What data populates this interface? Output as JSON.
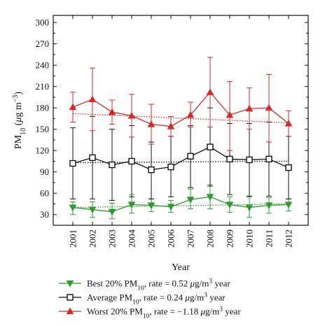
{
  "chart_data": {
    "type": "line",
    "xlabel": "Year",
    "ylabel_main": "PM",
    "ylabel_sub": "10",
    "ylabel_unit_prefix": " (",
    "ylabel_unit_mu": "μ",
    "ylabel_unit_mid": "g m",
    "ylabel_unit_sup": "−3",
    "ylabel_unit_end": ")",
    "categories": [
      "2001",
      "2002",
      "2003",
      "2004",
      "2005",
      "2006",
      "2007",
      "2008",
      "2009",
      "2010",
      "2011",
      "2012"
    ],
    "yticks": [
      30,
      60,
      90,
      120,
      150,
      180,
      210,
      240,
      270,
      300
    ],
    "ylim": [
      15,
      310
    ],
    "series": [
      {
        "key": "best",
        "color": "#2e9b2e",
        "marker": "triangle-down",
        "values": [
          40,
          37,
          34,
          44,
          43,
          41,
          51,
          55,
          44,
          40,
          43,
          44
        ],
        "err_hi": [
          48,
          48,
          46,
          58,
          52,
          50,
          66,
          72,
          55,
          55,
          54,
          52
        ],
        "err_lo": [
          30,
          26,
          24,
          32,
          34,
          33,
          38,
          38,
          33,
          26,
          32,
          35
        ],
        "trend": [
          40,
          45
        ]
      },
      {
        "key": "average",
        "color": "#111111",
        "marker": "square",
        "values": [
          102,
          110,
          100,
          105,
          93,
          97,
          112,
          125,
          108,
          107,
          108,
          96
        ],
        "err_hi": [
          152,
          168,
          150,
          155,
          132,
          140,
          155,
          180,
          158,
          158,
          160,
          140
        ],
        "err_lo": [
          52,
          52,
          50,
          55,
          52,
          55,
          68,
          70,
          58,
          56,
          56,
          52
        ],
        "trend": [
          103,
          105
        ]
      },
      {
        "key": "worst",
        "color": "#d42a2a",
        "marker": "triangle-up",
        "values": [
          181,
          192,
          174,
          169,
          157,
          154,
          170,
          202,
          170,
          179,
          180,
          158
        ],
        "err_hi": [
          202,
          236,
          191,
          199,
          185,
          168,
          188,
          251,
          217,
          208,
          227,
          176
        ],
        "err_lo": [
          160,
          148,
          157,
          139,
          129,
          140,
          153,
          153,
          120,
          150,
          132,
          140
        ],
        "trend": [
          172,
          159
        ]
      }
    ],
    "legend": [
      {
        "key": "best",
        "pre": "Best 20% PM",
        "sub": "10",
        "mid": ", rate = 0.52 ",
        "mu": "μ",
        "unit": "g/m",
        "sup": "3",
        "post": " year"
      },
      {
        "key": "average",
        "pre": "Average PM",
        "sub": "10",
        "mid": ", rate = 0.24 ",
        "mu": "μ",
        "unit": "g/m",
        "sup": "3",
        "post": " year"
      },
      {
        "key": "worst",
        "pre": "Worst 20% PM",
        "sub": "10",
        "mid": ", rate = −1.18 ",
        "mu": "μ",
        "unit": "g/m",
        "sup": "3",
        "post": " year"
      }
    ],
    "legend_placement": "bottom",
    "grid": false
  }
}
